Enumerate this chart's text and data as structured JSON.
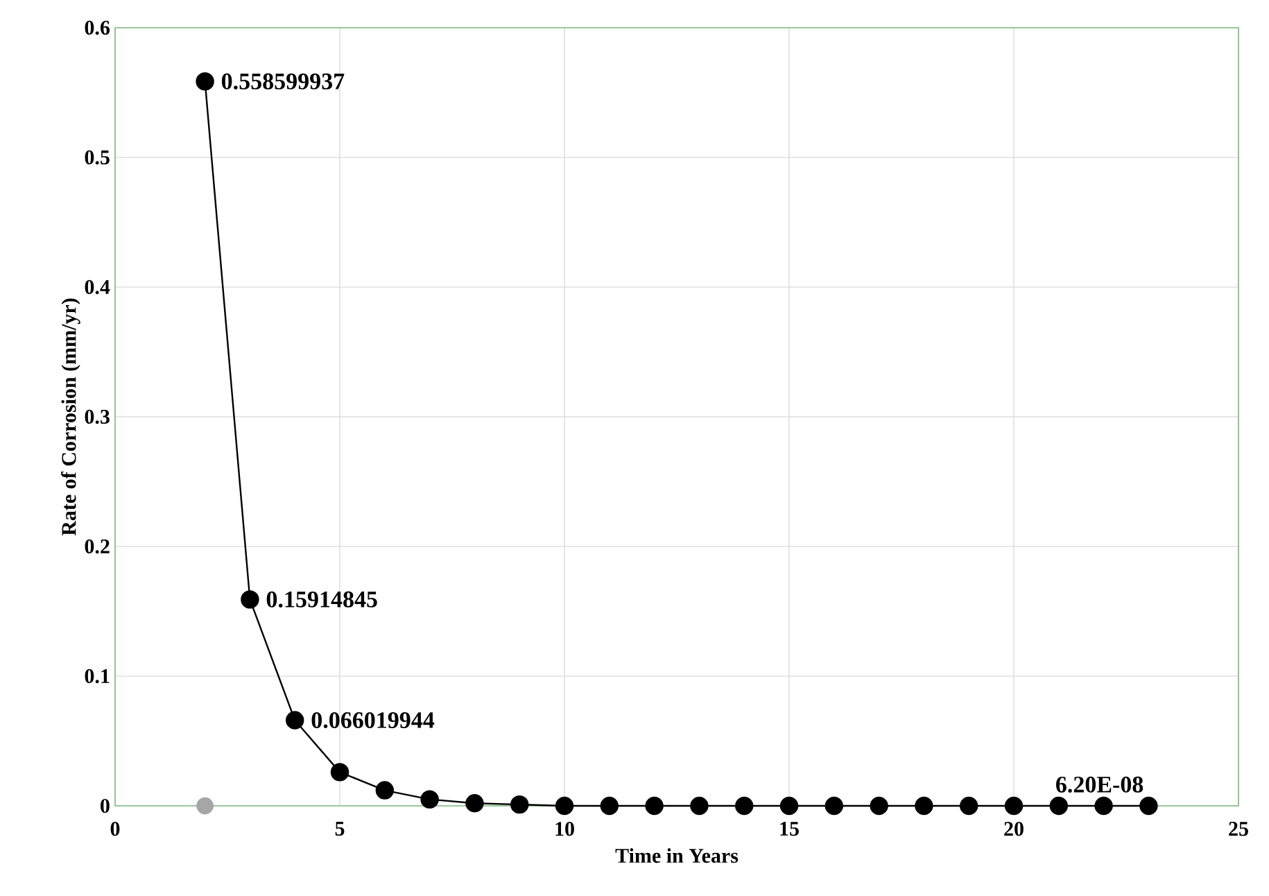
{
  "chart_data": {
    "type": "line",
    "xlabel": "Time in Years",
    "ylabel": "Rate of Corrosion (mm/yr)",
    "xlim": [
      0,
      25
    ],
    "xticks": [
      0,
      5,
      10,
      15,
      20,
      25
    ],
    "ylim": [
      0,
      0.6
    ],
    "yticks": [
      0,
      0.1,
      0.2,
      0.3,
      0.4,
      0.5,
      0.6
    ],
    "grid": true,
    "marker": "circle",
    "line_style": "solid",
    "series": [
      {
        "color": "#000000",
        "x": [
          2,
          3,
          4,
          5,
          6,
          7,
          8,
          9,
          10,
          11,
          12,
          13,
          14,
          15,
          16,
          17,
          18,
          19,
          20,
          21,
          22,
          23
        ],
        "values": [
          0.558599937,
          0.15914845,
          0.066019944,
          0.026,
          0.012,
          0.005,
          0.002,
          0.001,
          0,
          0,
          0,
          0,
          0,
          0,
          0,
          0,
          0,
          0,
          0,
          0,
          0,
          6.2e-08
        ],
        "value_labels": [
          "0.558599937",
          "0.15914845",
          "0.066019944",
          null,
          null,
          null,
          null,
          null,
          null,
          null,
          null,
          null,
          null,
          null,
          null,
          null,
          null,
          null,
          null,
          null,
          null,
          "6.20E-08"
        ]
      },
      {
        "type": "scatter",
        "color": "#a6a6a6",
        "x": [
          2
        ],
        "values": [
          0
        ]
      }
    ]
  }
}
